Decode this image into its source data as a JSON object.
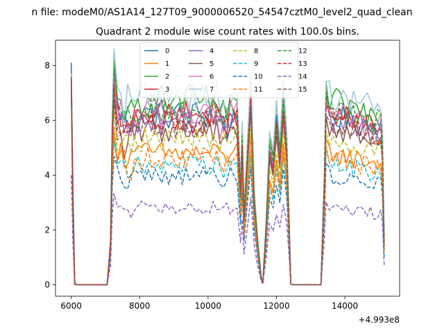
{
  "chart_data": {
    "type": "line",
    "suptitle": "n file: modeM0/AS1A14_127T09_9000006520_54547cztM0_level2_quad_clean",
    "title": "Quadrant 2 module wise count rates with 100.0s bins.",
    "x_offset_label": "+4.993e8",
    "xlabel": "",
    "ylabel": "",
    "xlim": [
      5540,
      15600
    ],
    "ylim": [
      -0.42,
      8.92
    ],
    "xticks": [
      6000,
      8000,
      10000,
      12000,
      14000
    ],
    "yticks": [
      0,
      2,
      4,
      6,
      8
    ],
    "grid": false,
    "legend": {
      "placement": "top-center",
      "columns": 4
    },
    "x_unit": "offset seconds from +4.993e8",
    "segments": [
      {
        "from": 6000,
        "to": 6050,
        "profile": "edge"
      },
      {
        "from": 6050,
        "to": 7050,
        "profile": "zero"
      },
      {
        "from": 7050,
        "to": 7250,
        "profile": "ramp"
      },
      {
        "from": 7250,
        "to": 10950,
        "profile": "plateau"
      },
      {
        "from": 10950,
        "to": 11600,
        "profile": "dips"
      },
      {
        "from": 11600,
        "to": 12400,
        "profile": "recover"
      },
      {
        "from": 12400,
        "to": 13350,
        "profile": "zero"
      },
      {
        "from": 13350,
        "to": 15150,
        "profile": "plateau"
      }
    ],
    "series": [
      {
        "name": "0",
        "color": "#1f77b4",
        "dash": "solid",
        "level": 6.2,
        "start": 8.1,
        "end": 1.5
      },
      {
        "name": "1",
        "color": "#ff7f0e",
        "dash": "solid",
        "level": 4.8,
        "start": 7.6,
        "end": 1.2
      },
      {
        "name": "2",
        "color": "#2ca02c",
        "dash": "solid",
        "level": 6.7,
        "start": 7.7,
        "end": 1.6
      },
      {
        "name": "3",
        "color": "#d62728",
        "dash": "solid",
        "level": 6.2,
        "start": 7.6,
        "end": 1.5
      },
      {
        "name": "4",
        "color": "#9467bd",
        "dash": "solid",
        "level": 6.0,
        "start": 7.5,
        "end": 1.4
      },
      {
        "name": "5",
        "color": "#8c564b",
        "dash": "solid",
        "level": 5.7,
        "start": 7.4,
        "end": 1.4
      },
      {
        "name": "6",
        "color": "#e377c2",
        "dash": "solid",
        "level": 6.3,
        "start": 7.6,
        "end": 1.5
      },
      {
        "name": "7",
        "color": "#9fc5d8",
        "dash": "solid",
        "level": 7.0,
        "start": 7.7,
        "end": 1.7
      },
      {
        "name": "8",
        "color": "#bcbd22",
        "dash": "dashed",
        "level": 5.3,
        "start": 7.4,
        "end": 1.3
      },
      {
        "name": "9",
        "color": "#17becf",
        "dash": "dashed",
        "level": 4.4,
        "start": 7.3,
        "end": 1.1
      },
      {
        "name": "10",
        "color": "#1f77b4",
        "dash": "dashed",
        "level": 4.0,
        "start": 7.2,
        "end": 1.0
      },
      {
        "name": "11",
        "color": "#ff7f0e",
        "dash": "dashed",
        "level": 4.6,
        "start": 7.3,
        "end": 1.2
      },
      {
        "name": "12",
        "color": "#2ca02c",
        "dash": "dashed",
        "level": 6.4,
        "start": 7.6,
        "end": 1.5
      },
      {
        "name": "13",
        "color": "#d62728",
        "dash": "dashed",
        "level": 6.0,
        "start": 7.5,
        "end": 1.4
      },
      {
        "name": "14",
        "color": "#9467bd",
        "dash": "dashed",
        "level": 2.8,
        "start": 4.0,
        "end": 0.7
      },
      {
        "name": "15",
        "color": "#8c564b",
        "dash": "dashed",
        "level": 5.8,
        "start": 7.4,
        "end": 1.4
      }
    ]
  }
}
